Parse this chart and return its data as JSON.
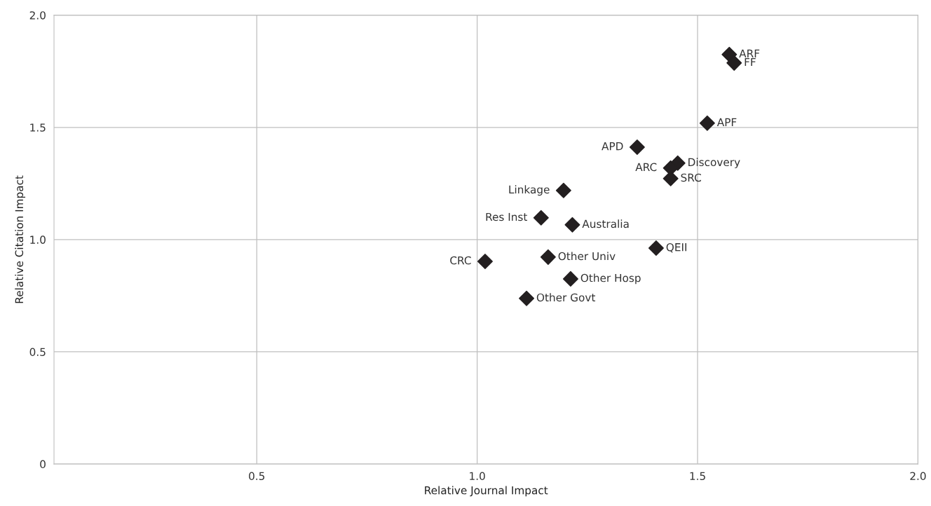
{
  "chart_data": {
    "type": "scatter",
    "xlabel": "Relative Journal Impact",
    "ylabel": "Relative Citation Impact",
    "x": [
      1.572,
      1.583,
      1.522,
      1.363,
      1.455,
      1.439,
      1.439,
      1.196,
      1.145,
      1.216,
      1.406,
      1.018,
      1.161,
      1.212,
      1.112
    ],
    "series": [
      {
        "color": "#231f20",
        "values": [
          1.825,
          1.787,
          1.519,
          1.412,
          1.341,
          1.319,
          1.272,
          1.219,
          1.097,
          1.066,
          0.962,
          0.903,
          0.922,
          0.825,
          0.738
        ]
      }
    ],
    "marker": "diamond",
    "annotations": [
      {
        "text": "ARF",
        "x": 1.572,
        "y": 1.825
      },
      {
        "text": "FF",
        "x": 1.583,
        "y": 1.787
      },
      {
        "text": "APF",
        "x": 1.522,
        "y": 1.519
      },
      {
        "text": "APD",
        "x": 1.363,
        "y": 1.412
      },
      {
        "text": "Discovery",
        "x": 1.455,
        "y": 1.341
      },
      {
        "text": "ARC",
        "x": 1.439,
        "y": 1.319
      },
      {
        "text": "SRC",
        "x": 1.439,
        "y": 1.272
      },
      {
        "text": "Linkage",
        "x": 1.196,
        "y": 1.219
      },
      {
        "text": "Res Inst",
        "x": 1.145,
        "y": 1.097
      },
      {
        "text": "Australia",
        "x": 1.216,
        "y": 1.066
      },
      {
        "text": "QEII",
        "x": 1.406,
        "y": 0.962
      },
      {
        "text": "CRC",
        "x": 1.018,
        "y": 0.903
      },
      {
        "text": "Other Univ",
        "x": 1.161,
        "y": 0.922
      },
      {
        "text": "Other Hosp",
        "x": 1.212,
        "y": 0.825
      },
      {
        "text": "Other Govt",
        "x": 1.112,
        "y": 0.738
      }
    ],
    "xlim": [
      0.04,
      2.0
    ],
    "ylim": [
      0,
      2.0
    ],
    "xticks": [
      0.5,
      {
        "value": 1,
        "label": "1.0"
      },
      1.5,
      {
        "value": 2,
        "label": "2.0"
      }
    ],
    "yticks": [
      0,
      0.5,
      {
        "value": 1,
        "label": "1.0"
      },
      1.5,
      {
        "value": 2,
        "label": "2.0"
      }
    ],
    "grid": true
  }
}
